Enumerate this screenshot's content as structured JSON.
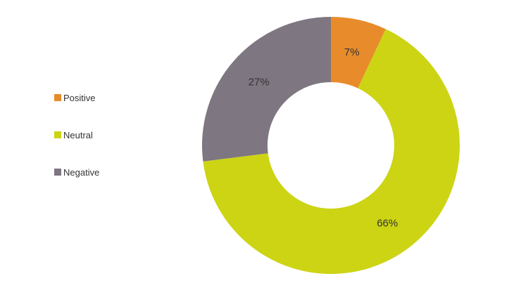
{
  "chart_data": {
    "type": "pie",
    "donut": true,
    "categories": [
      "Positive",
      "Neutral",
      "Negative"
    ],
    "values": [
      7,
      66,
      27
    ],
    "labels": [
      "7%",
      "66%",
      "27%"
    ],
    "colors": [
      "#E88B2B",
      "#CCD414",
      "#7E7681"
    ],
    "legend_position": "left",
    "start_angle_deg": 0,
    "direction": "clockwise"
  }
}
